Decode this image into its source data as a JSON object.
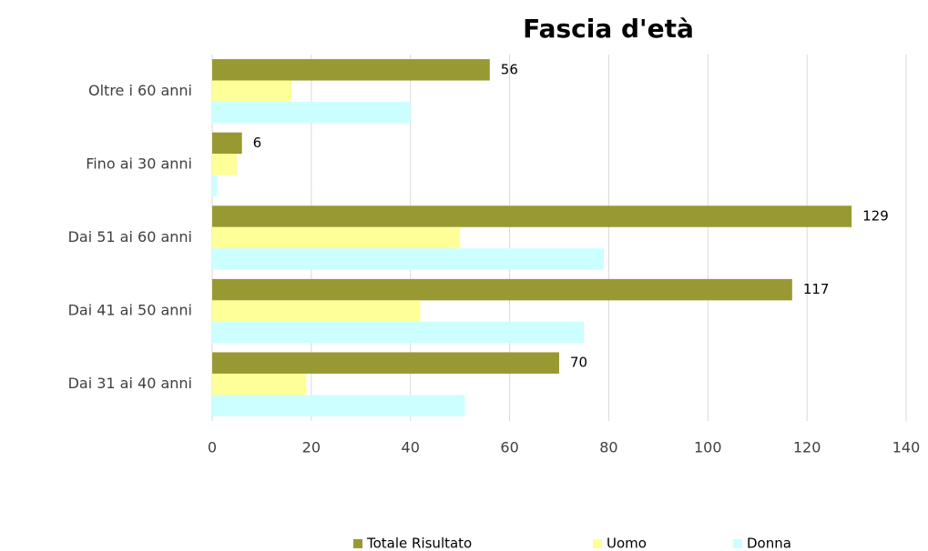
{
  "chart_data": {
    "type": "barh",
    "title": "Fascia d'età",
    "categories": [
      "Oltre i 60 anni",
      "Fino ai 30 anni",
      "Dai 51 ai 60 anni",
      "Dai 41 ai 50 anni",
      "Dai 31 ai 40 anni"
    ],
    "series": [
      {
        "name": "Totale Risultato",
        "color": "#999933",
        "values": [
          56,
          6,
          129,
          117,
          70
        ],
        "data_labels": true
      },
      {
        "name": "Uomo",
        "color": "#ffff99",
        "values": [
          16,
          5,
          50,
          42,
          19
        ]
      },
      {
        "name": "Donna",
        "color": "#ccffff",
        "values": [
          40,
          1,
          79,
          75,
          51
        ]
      }
    ],
    "xlim": [
      0,
      140
    ],
    "xticks": [
      0,
      20,
      40,
      60,
      80,
      100,
      120,
      140
    ],
    "grid": true,
    "legend": "bottom"
  }
}
